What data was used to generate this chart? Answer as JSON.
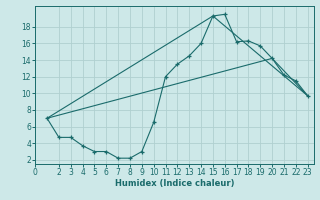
{
  "xlabel": "Humidex (Indice chaleur)",
  "bg_color": "#cde8e8",
  "grid_color": "#b0d0d0",
  "line_color": "#1a6b6b",
  "xlim": [
    0,
    23.5
  ],
  "ylim": [
    1.5,
    20.5
  ],
  "xticks": [
    0,
    2,
    3,
    4,
    5,
    6,
    7,
    8,
    9,
    10,
    11,
    12,
    13,
    14,
    15,
    16,
    17,
    18,
    19,
    20,
    21,
    22,
    23
  ],
  "yticks": [
    2,
    4,
    6,
    8,
    10,
    12,
    14,
    16,
    18
  ],
  "line1_x": [
    1,
    2,
    3,
    4,
    5,
    6,
    7,
    8,
    9,
    10,
    11,
    12,
    13,
    14,
    15,
    16,
    17,
    18,
    19,
    20,
    21,
    22,
    23
  ],
  "line1_y": [
    7.0,
    4.7,
    4.7,
    3.7,
    3.0,
    3.0,
    2.2,
    2.2,
    3.0,
    6.5,
    12.0,
    13.5,
    14.5,
    16.0,
    19.3,
    19.5,
    16.2,
    16.3,
    15.7,
    14.2,
    12.2,
    11.5,
    9.7
  ],
  "line2_x": [
    1,
    15,
    23
  ],
  "line2_y": [
    7.0,
    19.3,
    9.7
  ],
  "line3_x": [
    1,
    20,
    23
  ],
  "line3_y": [
    7.0,
    14.2,
    9.7
  ]
}
